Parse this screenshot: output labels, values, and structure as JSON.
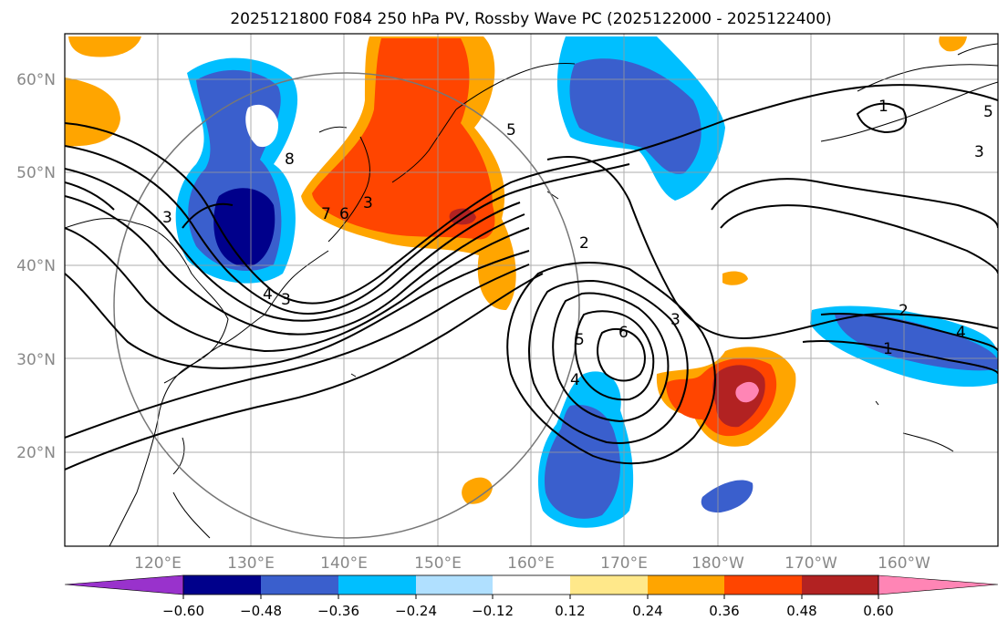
{
  "title": "2025121800 F084 250 hPa PV, Rossby Wave PC (2025122000 - 2025122400)",
  "map": {
    "lon_labels": [
      "120°E",
      "130°E",
      "140°E",
      "150°E",
      "160°E",
      "170°E",
      "180°W",
      "170°W",
      "160°W"
    ],
    "lat_labels": [
      "60°N",
      "50°N",
      "40°N",
      "30°N",
      "20°N"
    ],
    "contour_labels": [
      "8",
      "7",
      "6",
      "5",
      "4",
      "3",
      "3",
      "2",
      "3",
      "4",
      "5",
      "6",
      "1",
      "1",
      "2",
      "3",
      "4",
      "5",
      "3"
    ]
  },
  "colorbar": {
    "ticks": [
      "−0.60",
      "−0.48",
      "−0.36",
      "−0.24",
      "−0.12",
      "0.12",
      "0.24",
      "0.36",
      "0.48",
      "0.60"
    ],
    "colors": [
      "#9932cc",
      "#00008b",
      "#3a5fcd",
      "#00bfff",
      "#b0e0ff",
      "#ffffff",
      "#ffe88a",
      "#ffa500",
      "#ff4500",
      "#b22222",
      "#ff85b5"
    ]
  }
}
